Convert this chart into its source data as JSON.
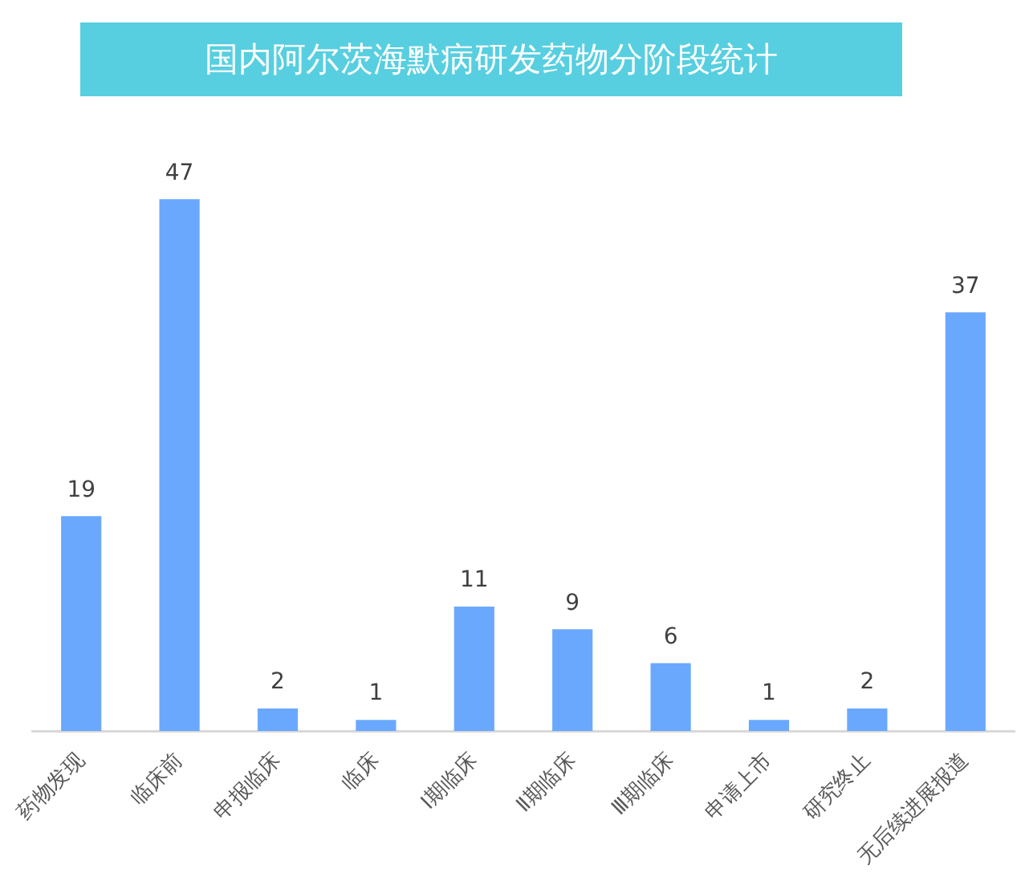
{
  "chart_data": {
    "type": "bar",
    "title": "国内阿尔茨海默病研发药物分阶段统计",
    "categories": [
      "药物发现",
      "临床前",
      "申报临床",
      "临床",
      "Ⅰ期临床",
      "Ⅱ期临床",
      "Ⅲ期临床",
      "申请上市",
      "研究终止",
      "无后续进展报道"
    ],
    "values": [
      19,
      47,
      2,
      1,
      11,
      9,
      6,
      1,
      2,
      37
    ],
    "color": "#6aa8fe",
    "data_labels": true,
    "grid": false,
    "legend": false
  }
}
